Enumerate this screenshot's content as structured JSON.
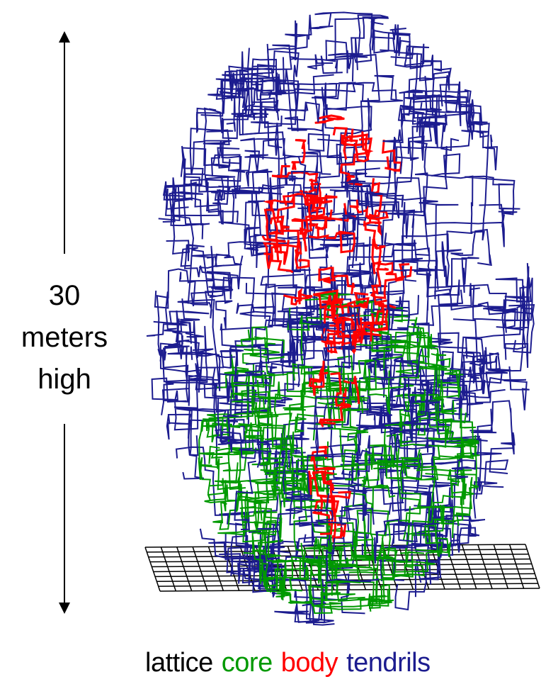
{
  "label": {
    "lines": [
      "30",
      "meters",
      "high"
    ]
  },
  "legend": {
    "items": [
      {
        "text": "lattice",
        "color": "#000000"
      },
      {
        "text": "core",
        "color": "#009900"
      },
      {
        "text": "body",
        "color": "#ff0000"
      },
      {
        "text": "tendrils",
        "color": "#1c1c8f"
      }
    ]
  }
}
